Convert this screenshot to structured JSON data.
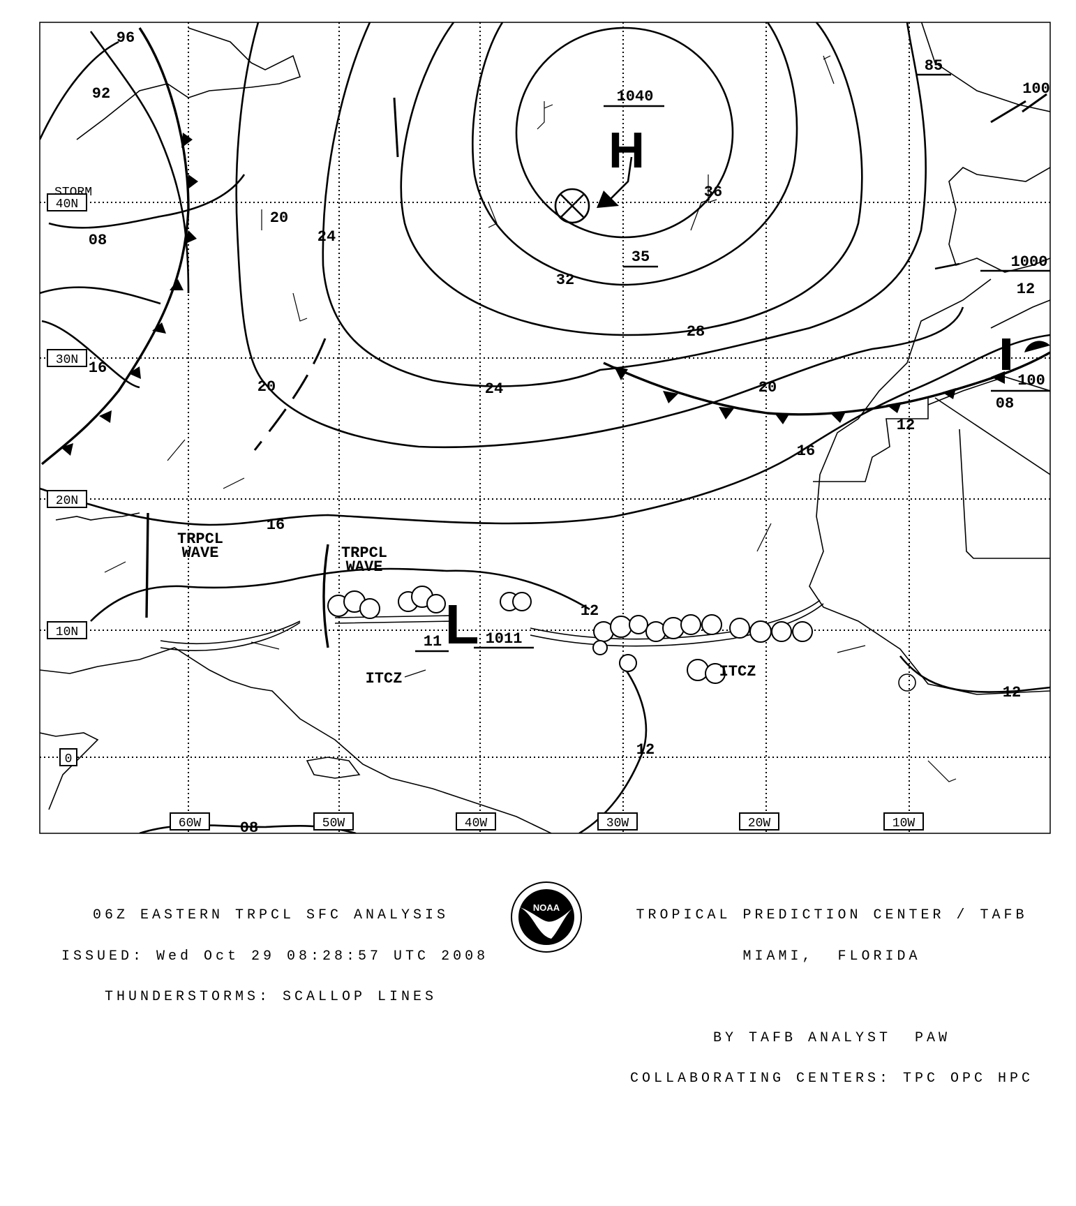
{
  "map": {
    "lon_labels": [
      "60W",
      "50W",
      "40W",
      "30W",
      "20W",
      "10W"
    ],
    "lat_labels": [
      "40N",
      "30N",
      "20N",
      "10N",
      "0"
    ],
    "storm_label": "STORM",
    "high": {
      "symbol": "H",
      "pressure": "1040"
    },
    "low": {
      "symbol": "L",
      "pressure": "1011"
    },
    "isobar_labels": [
      "92",
      "96",
      "08",
      "16",
      "20",
      "24",
      "20",
      "24",
      "32",
      "28",
      "36",
      "20",
      "16",
      "12",
      "16",
      "12",
      "11",
      "12",
      "12",
      "08"
    ],
    "pressure_values": [
      "35",
      "85",
      "100",
      "1000",
      "12",
      "100",
      "08"
    ],
    "features": {
      "tropical_wave_1": [
        "TRPCL",
        "WAVE"
      ],
      "tropical_wave_2": [
        "TRPCL",
        "WAVE"
      ],
      "itcz_1": "ITCZ",
      "itcz_2": "ITCZ"
    }
  },
  "footer": {
    "left": [
      "06Z EASTERN TRPCL SFC ANALYSIS",
      "ISSUED: Wed Oct 29 08:28:57 UTC 2008",
      "THUNDERSTORMS: SCALLOP LINES"
    ],
    "logo": "NOAA",
    "right": [
      "TROPICAL PREDICTION CENTER / TAFB",
      "MIAMI,  FLORIDA",
      "",
      "BY TAFB ANALYST  PAW",
      "COLLABORATING CENTERS: TPC OPC HPC"
    ]
  }
}
